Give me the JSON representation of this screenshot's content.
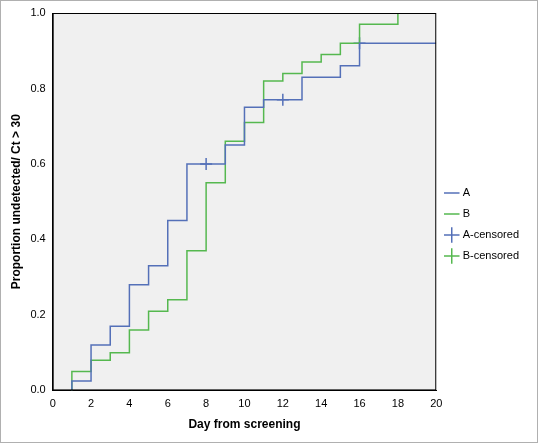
{
  "chart_data": {
    "type": "line",
    "x_label": "Day from screening",
    "y_label": "Proportion undetected/ Ct > 30",
    "xlim": [
      0,
      20
    ],
    "xticks": [
      0,
      2,
      4,
      6,
      8,
      10,
      12,
      14,
      16,
      18,
      20
    ],
    "ylim": [
      0,
      1
    ],
    "yticks": [
      {
        "value": 0,
        "label": "0.0"
      },
      {
        "value": 0.2,
        "label": "0.2"
      },
      {
        "value": 0.4,
        "label": "0.4"
      },
      {
        "value": 0.6,
        "label": "0.6"
      },
      {
        "value": 0.8,
        "label": "0.8"
      },
      {
        "value": 1,
        "label": "1.0"
      }
    ],
    "grid": false,
    "legend": "right",
    "series": [
      {
        "name": "A",
        "color": "#5470b8",
        "line_style": "step",
        "x": [
          1,
          1,
          2,
          3,
          4,
          5,
          6,
          7,
          9,
          10,
          11,
          13,
          15,
          16,
          20
        ],
        "values": [
          0,
          0.025,
          0.12,
          0.17,
          0.28,
          0.33,
          0.45,
          0.6,
          0.65,
          0.75,
          0.77,
          0.83,
          0.86,
          0.92,
          0.92
        ]
      },
      {
        "name": "B",
        "color": "#55b84f",
        "line_style": "step",
        "x": [
          1,
          1,
          2,
          3,
          4,
          5,
          6,
          7,
          8,
          9,
          10,
          11,
          12,
          13,
          14,
          15,
          16,
          18
        ],
        "values": [
          0,
          0.05,
          0.08,
          0.1,
          0.16,
          0.21,
          0.24,
          0.37,
          0.55,
          0.66,
          0.71,
          0.82,
          0.84,
          0.87,
          0.89,
          0.92,
          0.97,
          1
        ]
      },
      {
        "name": "A-censored",
        "color": "#5470b8",
        "marker": "plus",
        "x": [
          8,
          12,
          16
        ],
        "values": [
          0.6,
          0.77,
          0.92
        ]
      },
      {
        "name": "B-censored",
        "color": "#55b84f",
        "marker": "plus",
        "x": [],
        "values": []
      }
    ]
  }
}
